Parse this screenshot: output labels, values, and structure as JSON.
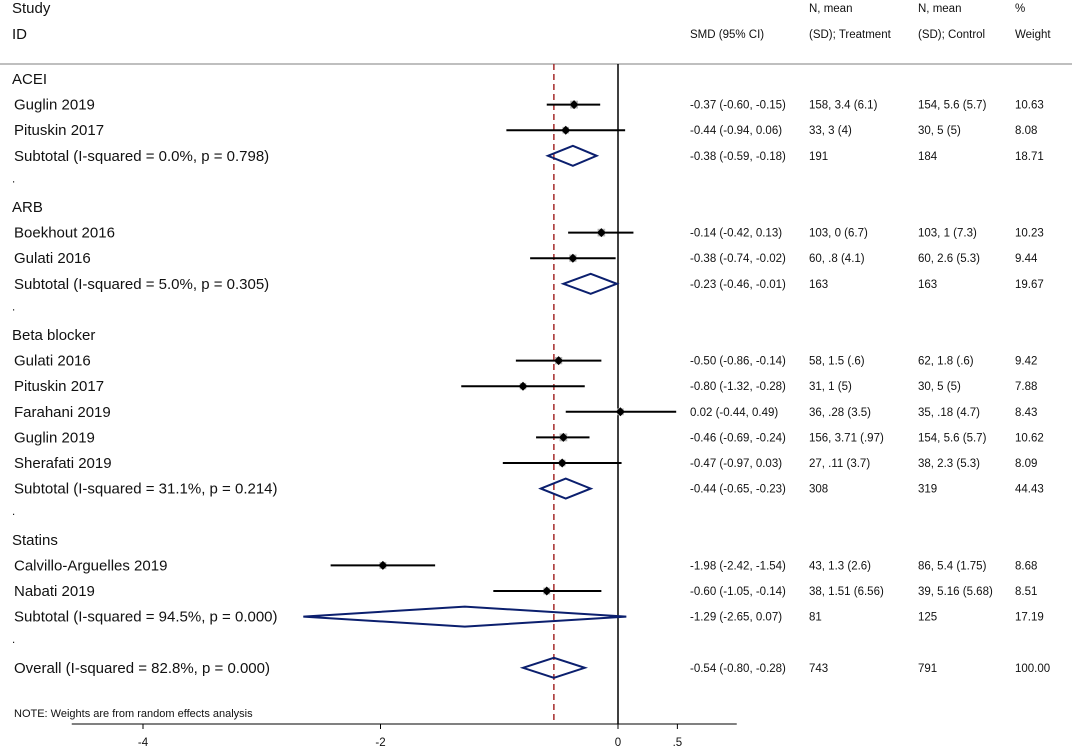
{
  "header": {
    "study_line1": "Study",
    "study_line2": "ID",
    "smd": "SMD (95% CI)",
    "treat_line1": "N, mean",
    "treat_line2": "(SD); Treatment",
    "ctrl_line1": "N, mean",
    "ctrl_line2": "(SD); Control",
    "weight_line1": "%",
    "weight_line2": "Weight"
  },
  "note": "NOTE: Weights are from random effects analysis",
  "colors": {
    "ci_line": "#000000",
    "point_marker": "#000000",
    "weight_box": "#b5b5b5",
    "diamond": "#0b1f6e",
    "overall_line": "#a52a2a",
    "axis": "#000000",
    "divider": "#bfbfbf"
  },
  "chart_data": {
    "type": "forest",
    "xlim": [
      -4.6,
      1.0
    ],
    "xticks": [
      -4,
      -2,
      0,
      0.5
    ],
    "xtick_labels": [
      "-4",
      "-2",
      "0",
      ".5"
    ],
    "null_line": 0,
    "overall_estimate": -0.54,
    "rows": [
      {
        "kind": "group",
        "label": "ACEI"
      },
      {
        "kind": "study",
        "label": "Guglin 2019",
        "est": -0.37,
        "lo": -0.6,
        "hi": -0.15,
        "ci_text": "-0.37 (-0.60, -0.15)",
        "treat": "158, 3.4 (6.1)",
        "ctrl": "154, 5.6 (5.7)",
        "weight": "10.63"
      },
      {
        "kind": "study",
        "label": "Pituskin 2017",
        "est": -0.44,
        "lo": -0.94,
        "hi": 0.06,
        "ci_text": "-0.44 (-0.94, 0.06)",
        "treat": "33, 3 (4)",
        "ctrl": "30, 5 (5)",
        "weight": "8.08"
      },
      {
        "kind": "subtotal",
        "label": "Subtotal  (I-squared = 0.0%, p = 0.798)",
        "est": -0.38,
        "lo": -0.59,
        "hi": -0.18,
        "ci_text": "-0.38 (-0.59, -0.18)",
        "treat": "191",
        "ctrl": "184",
        "weight": "18.71"
      },
      {
        "kind": "dot",
        "label": "."
      },
      {
        "kind": "group",
        "label": "ARB"
      },
      {
        "kind": "study",
        "label": "Boekhout 2016",
        "est": -0.14,
        "lo": -0.42,
        "hi": 0.13,
        "ci_text": "-0.14 (-0.42, 0.13)",
        "treat": "103, 0 (6.7)",
        "ctrl": "103, 1 (7.3)",
        "weight": "10.23"
      },
      {
        "kind": "study",
        "label": "Gulati 2016",
        "est": -0.38,
        "lo": -0.74,
        "hi": -0.02,
        "ci_text": "-0.38 (-0.74, -0.02)",
        "treat": "60, .8 (4.1)",
        "ctrl": "60, 2.6 (5.3)",
        "weight": "9.44"
      },
      {
        "kind": "subtotal",
        "label": "Subtotal  (I-squared = 5.0%, p = 0.305)",
        "est": -0.23,
        "lo": -0.46,
        "hi": -0.01,
        "ci_text": "-0.23 (-0.46, -0.01)",
        "treat": "163",
        "ctrl": "163",
        "weight": "19.67"
      },
      {
        "kind": "dot",
        "label": "."
      },
      {
        "kind": "group",
        "label": "Beta blocker"
      },
      {
        "kind": "study",
        "label": "Gulati 2016",
        "est": -0.5,
        "lo": -0.86,
        "hi": -0.14,
        "ci_text": "-0.50 (-0.86, -0.14)",
        "treat": "58, 1.5 (.6)",
        "ctrl": "62, 1.8 (.6)",
        "weight": "9.42"
      },
      {
        "kind": "study",
        "label": "Pituskin 2017",
        "est": -0.8,
        "lo": -1.32,
        "hi": -0.28,
        "ci_text": "-0.80 (-1.32, -0.28)",
        "treat": "31, 1 (5)",
        "ctrl": "30, 5 (5)",
        "weight": "7.88"
      },
      {
        "kind": "study",
        "label": "Farahani 2019",
        "est": 0.02,
        "lo": -0.44,
        "hi": 0.49,
        "ci_text": "0.02 (-0.44, 0.49)",
        "treat": "36, .28 (3.5)",
        "ctrl": "35, .18 (4.7)",
        "weight": "8.43"
      },
      {
        "kind": "study",
        "label": "Guglin 2019",
        "est": -0.46,
        "lo": -0.69,
        "hi": -0.24,
        "ci_text": "-0.46 (-0.69, -0.24)",
        "treat": "156, 3.71 (.97)",
        "ctrl": "154, 5.6 (5.7)",
        "weight": "10.62"
      },
      {
        "kind": "study",
        "label": "Sherafati 2019",
        "est": -0.47,
        "lo": -0.97,
        "hi": 0.03,
        "ci_text": "-0.47 (-0.97, 0.03)",
        "treat": "27, .11 (3.7)",
        "ctrl": "38, 2.3 (5.3)",
        "weight": "8.09"
      },
      {
        "kind": "subtotal",
        "label": "Subtotal  (I-squared = 31.1%, p = 0.214)",
        "est": -0.44,
        "lo": -0.65,
        "hi": -0.23,
        "ci_text": "-0.44 (-0.65, -0.23)",
        "treat": "308",
        "ctrl": "319",
        "weight": "44.43"
      },
      {
        "kind": "dot",
        "label": "."
      },
      {
        "kind": "group",
        "label": "Statins"
      },
      {
        "kind": "study",
        "label": "Calvillo-Arguelles 2019",
        "est": -1.98,
        "lo": -2.42,
        "hi": -1.54,
        "ci_text": "-1.98 (-2.42, -1.54)",
        "treat": "43, 1.3 (2.6)",
        "ctrl": "86, 5.4 (1.75)",
        "weight": "8.68"
      },
      {
        "kind": "study",
        "label": "Nabati 2019",
        "est": -0.6,
        "lo": -1.05,
        "hi": -0.14,
        "ci_text": "-0.60 (-1.05, -0.14)",
        "treat": "38, 1.51 (6.56)",
        "ctrl": "39, 5.16 (5.68)",
        "weight": "8.51"
      },
      {
        "kind": "subtotal",
        "label": "Subtotal  (I-squared = 94.5%, p = 0.000)",
        "est": -1.29,
        "lo": -2.65,
        "hi": 0.07,
        "ci_text": "-1.29 (-2.65, 0.07)",
        "treat": "81",
        "ctrl": "125",
        "weight": "17.19"
      },
      {
        "kind": "dot",
        "label": "."
      },
      {
        "kind": "overall",
        "label": "Overall  (I-squared = 82.8%, p = 0.000)",
        "est": -0.54,
        "lo": -0.8,
        "hi": -0.28,
        "ci_text": "-0.54 (-0.80, -0.28)",
        "treat": "743",
        "ctrl": "791",
        "weight": "100.00"
      }
    ]
  }
}
